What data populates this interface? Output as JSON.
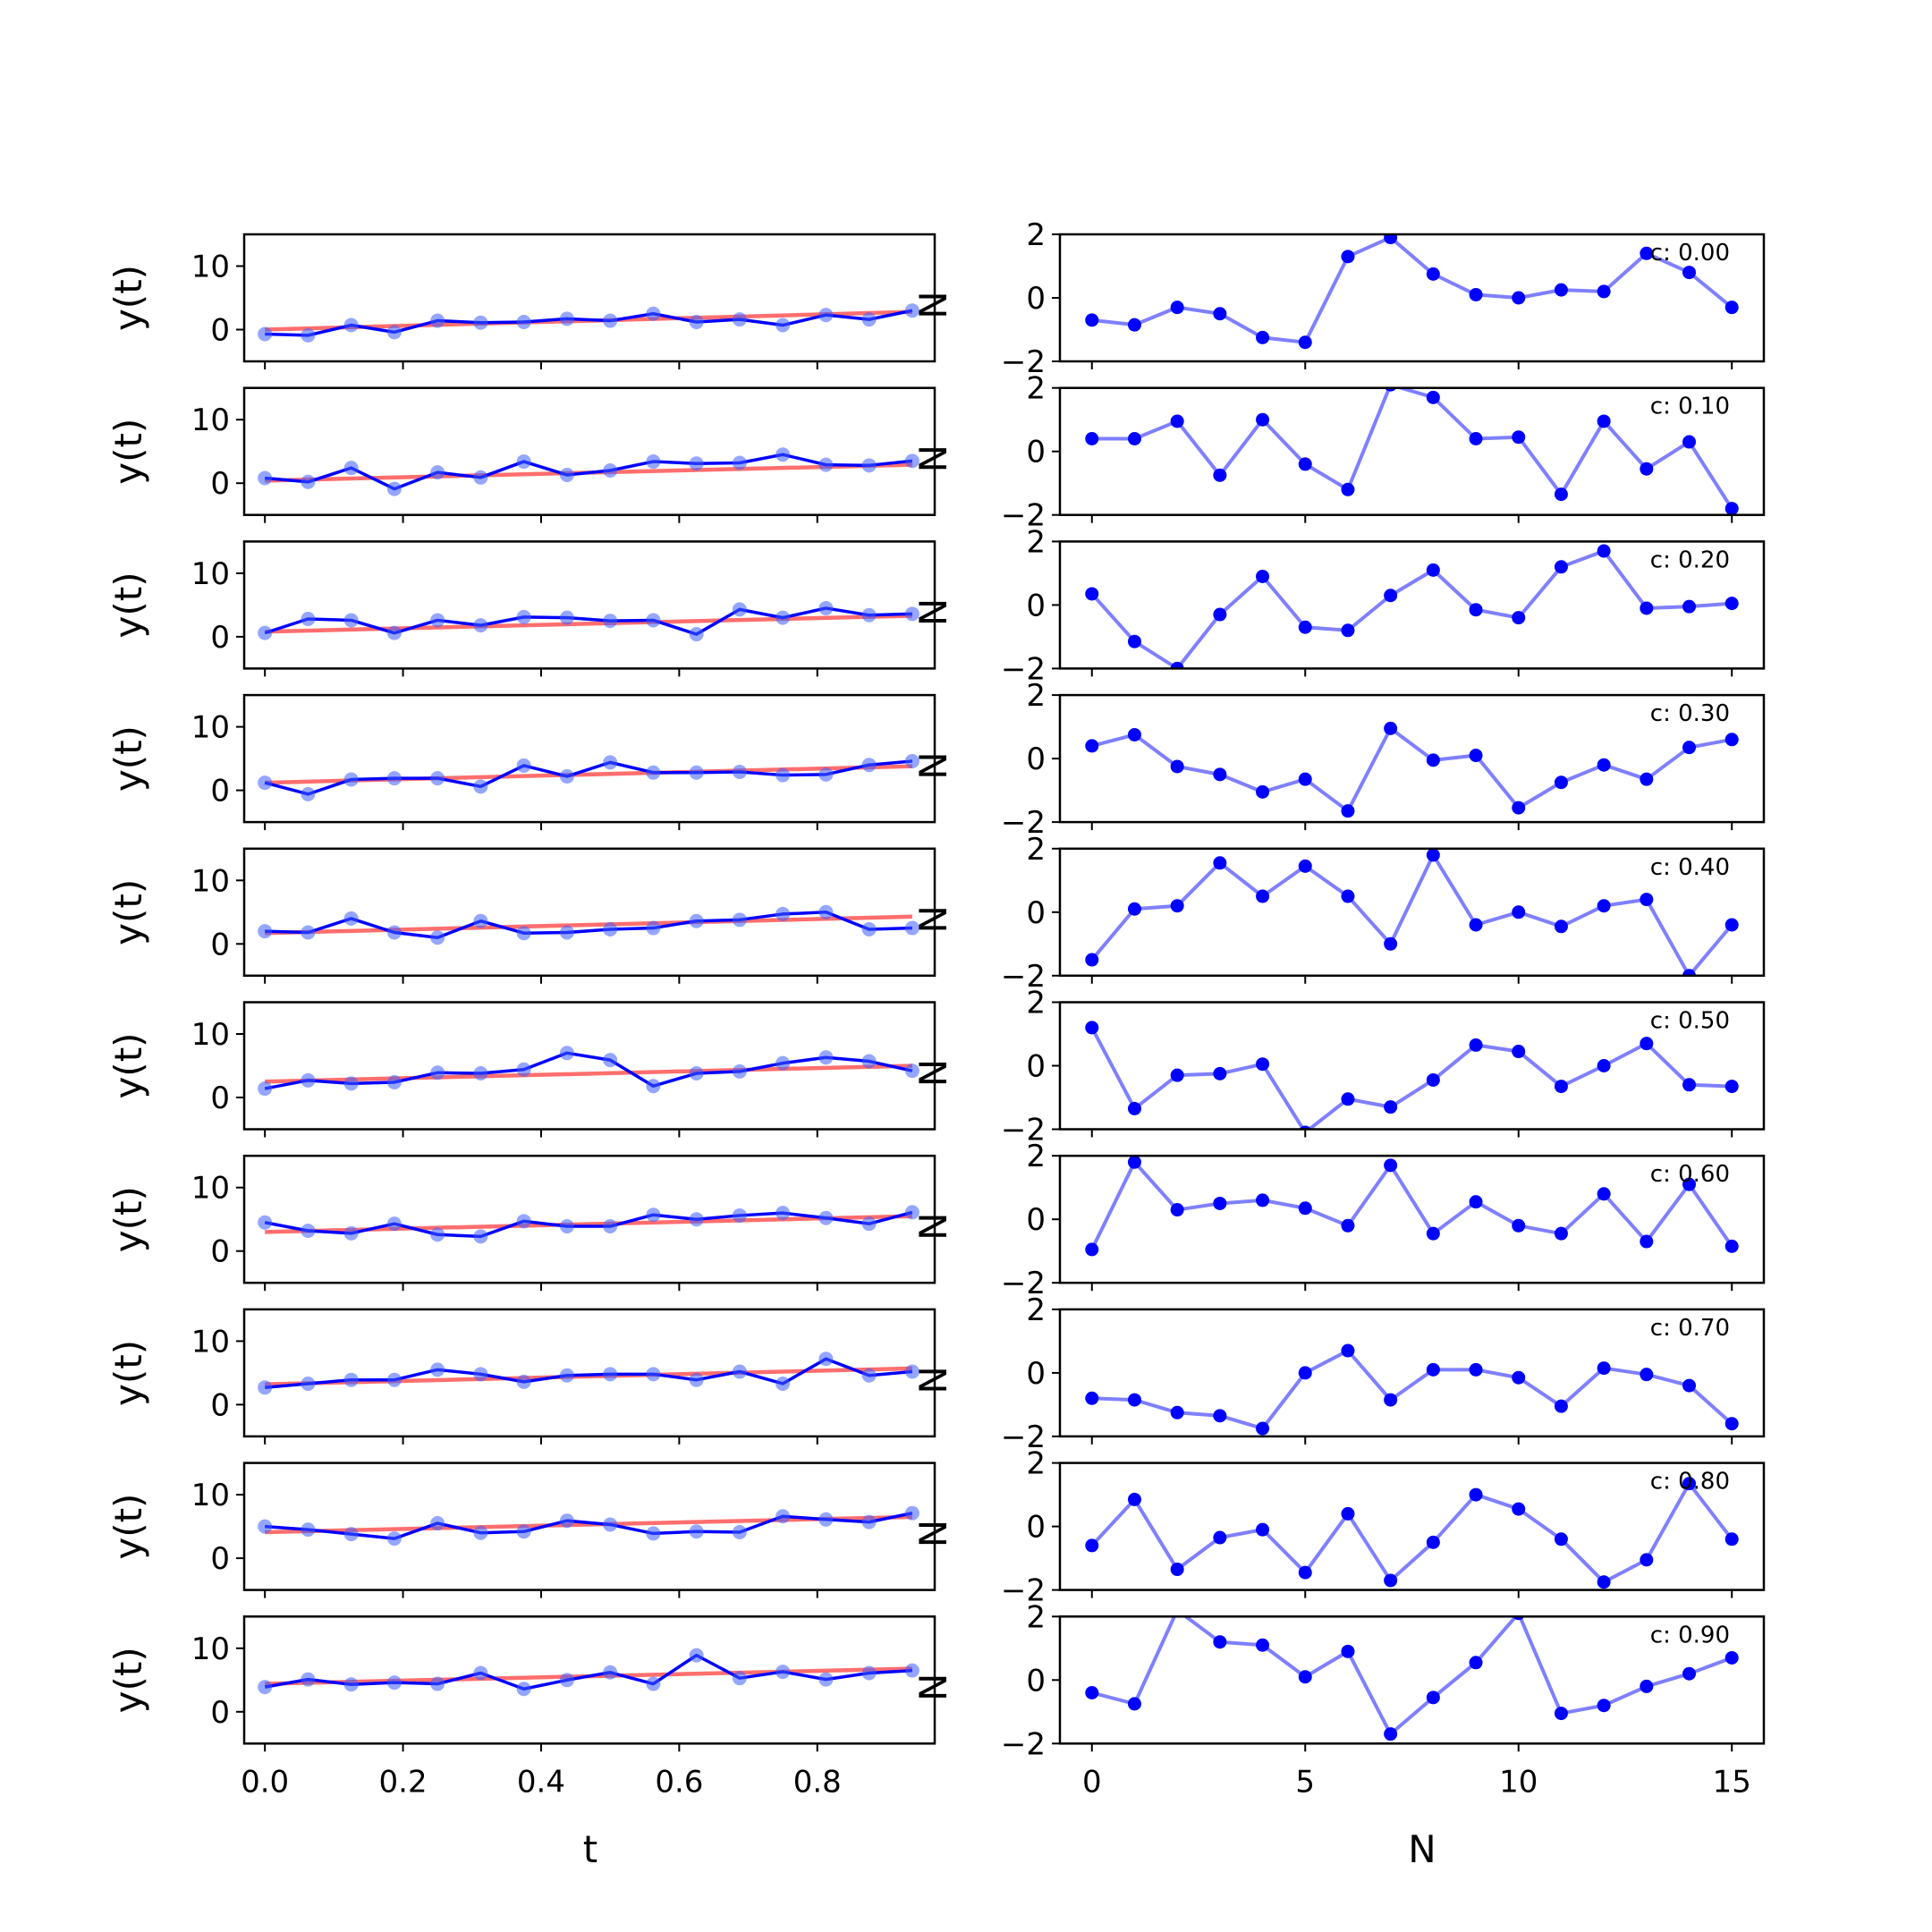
{
  "chart_data": [
    {
      "type": "line",
      "panel": "left-column",
      "xlabel": "t",
      "ylabel": "y(t)",
      "xlim": [
        -0.03,
        0.97
      ],
      "ylim": [
        -5,
        15
      ],
      "xticks": [
        0.0,
        0.2,
        0.4,
        0.6,
        0.8
      ],
      "xtick_labels": [
        "0.0",
        "0.2",
        "0.4",
        "0.6",
        "0.8"
      ],
      "yticks": [
        0,
        10
      ],
      "ytick_labels": [
        "0",
        "10"
      ],
      "grid": false,
      "x": [
        0,
        0.0625,
        0.125,
        0.1875,
        0.25,
        0.3125,
        0.375,
        0.4375,
        0.5,
        0.5625,
        0.625,
        0.6875,
        0.75,
        0.8125,
        0.875,
        0.9375
      ],
      "rows": [
        {
          "trend": [
            0.0,
            2.8
          ],
          "values": [
            -0.7,
            -0.9,
            0.7,
            -0.4,
            1.4,
            1.1,
            1.2,
            1.7,
            1.4,
            2.5,
            1.2,
            1.6,
            0.7,
            2.3,
            1.6,
            3.0
          ]
        },
        {
          "trend": [
            0.4,
            2.9
          ],
          "values": [
            0.8,
            0.2,
            2.4,
            -0.9,
            1.7,
            0.9,
            3.4,
            1.3,
            2.0,
            3.4,
            3.1,
            3.2,
            4.5,
            2.9,
            2.8,
            3.5
          ]
        },
        {
          "trend": [
            0.8,
            3.3
          ],
          "values": [
            0.6,
            2.8,
            2.6,
            0.6,
            2.6,
            1.8,
            3.1,
            3.0,
            2.5,
            2.6,
            0.4,
            4.3,
            3.0,
            4.5,
            3.4,
            3.6
          ]
        },
        {
          "trend": [
            1.2,
            3.8
          ],
          "values": [
            1.2,
            -0.6,
            1.7,
            1.9,
            1.9,
            0.6,
            3.9,
            2.2,
            4.4,
            2.8,
            2.8,
            2.9,
            2.4,
            2.5,
            4.0,
            4.6
          ]
        },
        {
          "trend": [
            1.7,
            4.3
          ],
          "values": [
            2.0,
            1.8,
            4.0,
            1.8,
            1.0,
            3.6,
            1.7,
            1.8,
            2.3,
            2.5,
            3.6,
            3.8,
            4.7,
            5.0,
            2.3,
            2.5
          ]
        },
        {
          "trend": [
            2.5,
            5.0
          ],
          "values": [
            1.4,
            2.7,
            2.2,
            2.4,
            3.9,
            3.8,
            4.4,
            7.0,
            5.9,
            1.8,
            3.8,
            4.1,
            5.4,
            6.3,
            5.7,
            4.2
          ]
        },
        {
          "trend": [
            3.0,
            5.5
          ],
          "values": [
            4.5,
            3.2,
            2.8,
            4.3,
            2.6,
            2.3,
            4.7,
            3.9,
            3.9,
            5.7,
            5.0,
            5.6,
            6.0,
            5.2,
            4.3,
            6.1
          ]
        },
        {
          "trend": [
            3.2,
            5.7
          ],
          "values": [
            2.7,
            3.3,
            3.9,
            3.9,
            5.5,
            4.8,
            3.6,
            4.6,
            4.8,
            4.8,
            3.9,
            5.2,
            3.3,
            7.2,
            4.6,
            5.2
          ]
        },
        {
          "trend": [
            4.1,
            6.5
          ],
          "values": [
            5.0,
            4.5,
            3.8,
            3.1,
            5.5,
            4.0,
            4.2,
            5.9,
            5.3,
            3.9,
            4.2,
            4.1,
            6.6,
            6.1,
            5.7,
            7.1
          ]
        },
        {
          "trend": [
            4.4,
            6.8
          ],
          "values": [
            3.9,
            5.1,
            4.3,
            4.6,
            4.4,
            6.1,
            3.6,
            5.0,
            6.2,
            4.4,
            8.9,
            5.3,
            6.3,
            5.1,
            6.1,
            6.5
          ]
        }
      ]
    },
    {
      "type": "line",
      "panel": "right-column",
      "xlabel": "N",
      "ylabel": "N",
      "xlim": [
        -0.75,
        15.75
      ],
      "ylim": [
        -2,
        2
      ],
      "xticks": [
        0,
        5,
        10,
        15
      ],
      "xtick_labels": [
        "0",
        "5",
        "10",
        "15"
      ],
      "yticks": [
        -2,
        0,
        2
      ],
      "ytick_labels": [
        "−2",
        "0",
        "2"
      ],
      "grid": false,
      "x": [
        0,
        1,
        2,
        3,
        4,
        5,
        6,
        7,
        8,
        9,
        10,
        11,
        12,
        13,
        14,
        15
      ],
      "rows": [
        {
          "label": "c: 0.00",
          "values": [
            -0.7,
            -0.85,
            -0.3,
            -0.5,
            -1.25,
            -1.4,
            1.3,
            1.9,
            0.75,
            0.1,
            0.0,
            0.25,
            0.2,
            1.4,
            0.8,
            -0.3
          ]
        },
        {
          "label": "c: 0.10",
          "values": [
            0.4,
            0.4,
            0.95,
            -0.75,
            1.0,
            -0.4,
            -1.2,
            2.1,
            1.7,
            0.4,
            0.45,
            -1.35,
            0.95,
            -0.55,
            0.3,
            -1.8
          ]
        },
        {
          "label": "c: 0.20",
          "values": [
            0.35,
            -1.15,
            -2.0,
            -0.3,
            0.9,
            -0.7,
            -0.8,
            0.3,
            1.1,
            -0.15,
            -0.4,
            1.2,
            1.7,
            -0.1,
            -0.05,
            0.05
          ]
        },
        {
          "label": "c: 0.30",
          "values": [
            0.4,
            0.75,
            -0.25,
            -0.5,
            -1.05,
            -0.65,
            -1.65,
            0.95,
            -0.05,
            0.1,
            -1.55,
            -0.75,
            -0.2,
            -0.65,
            0.35,
            0.6
          ]
        },
        {
          "label": "c: 0.40",
          "values": [
            -1.5,
            0.1,
            0.2,
            1.55,
            0.5,
            1.45,
            0.5,
            -1.0,
            1.8,
            -0.4,
            0.0,
            -0.45,
            0.2,
            0.4,
            -2.0,
            -0.4
          ]
        },
        {
          "label": "c: 0.50",
          "values": [
            1.2,
            -1.35,
            -0.3,
            -0.25,
            0.05,
            -2.1,
            -1.05,
            -1.3,
            -0.45,
            0.65,
            0.45,
            -0.65,
            0.0,
            0.7,
            -0.6,
            -0.65
          ]
        },
        {
          "label": "c: 0.60",
          "values": [
            -0.95,
            1.8,
            0.3,
            0.5,
            0.6,
            0.35,
            -0.2,
            1.7,
            -0.45,
            0.55,
            -0.2,
            -0.45,
            0.8,
            -0.7,
            1.1,
            -0.85
          ]
        },
        {
          "label": "c: 0.70",
          "values": [
            -0.8,
            -0.85,
            -1.25,
            -1.35,
            -1.75,
            0.0,
            0.7,
            -0.85,
            0.1,
            0.1,
            -0.15,
            -1.05,
            0.15,
            -0.05,
            -0.4,
            -1.6
          ]
        },
        {
          "label": "c: 0.80",
          "values": [
            -0.6,
            0.85,
            -1.35,
            -0.35,
            -0.1,
            -1.45,
            0.4,
            -1.7,
            -0.5,
            1.0,
            0.55,
            -0.4,
            -1.75,
            -1.05,
            1.35,
            -0.4
          ]
        },
        {
          "label": "c: 0.90",
          "values": [
            -0.4,
            -0.75,
            2.2,
            1.2,
            1.1,
            0.1,
            0.9,
            -1.7,
            -0.55,
            0.55,
            2.1,
            -1.05,
            -0.8,
            -0.2,
            0.2,
            0.7
          ]
        }
      ]
    }
  ],
  "colors": {
    "data_line": "#0000ff",
    "data_marker_left": "#3d5cff",
    "trend_line": "#ff6e6e",
    "right_line": "#7f7fff",
    "right_marker": "#0000ff"
  }
}
